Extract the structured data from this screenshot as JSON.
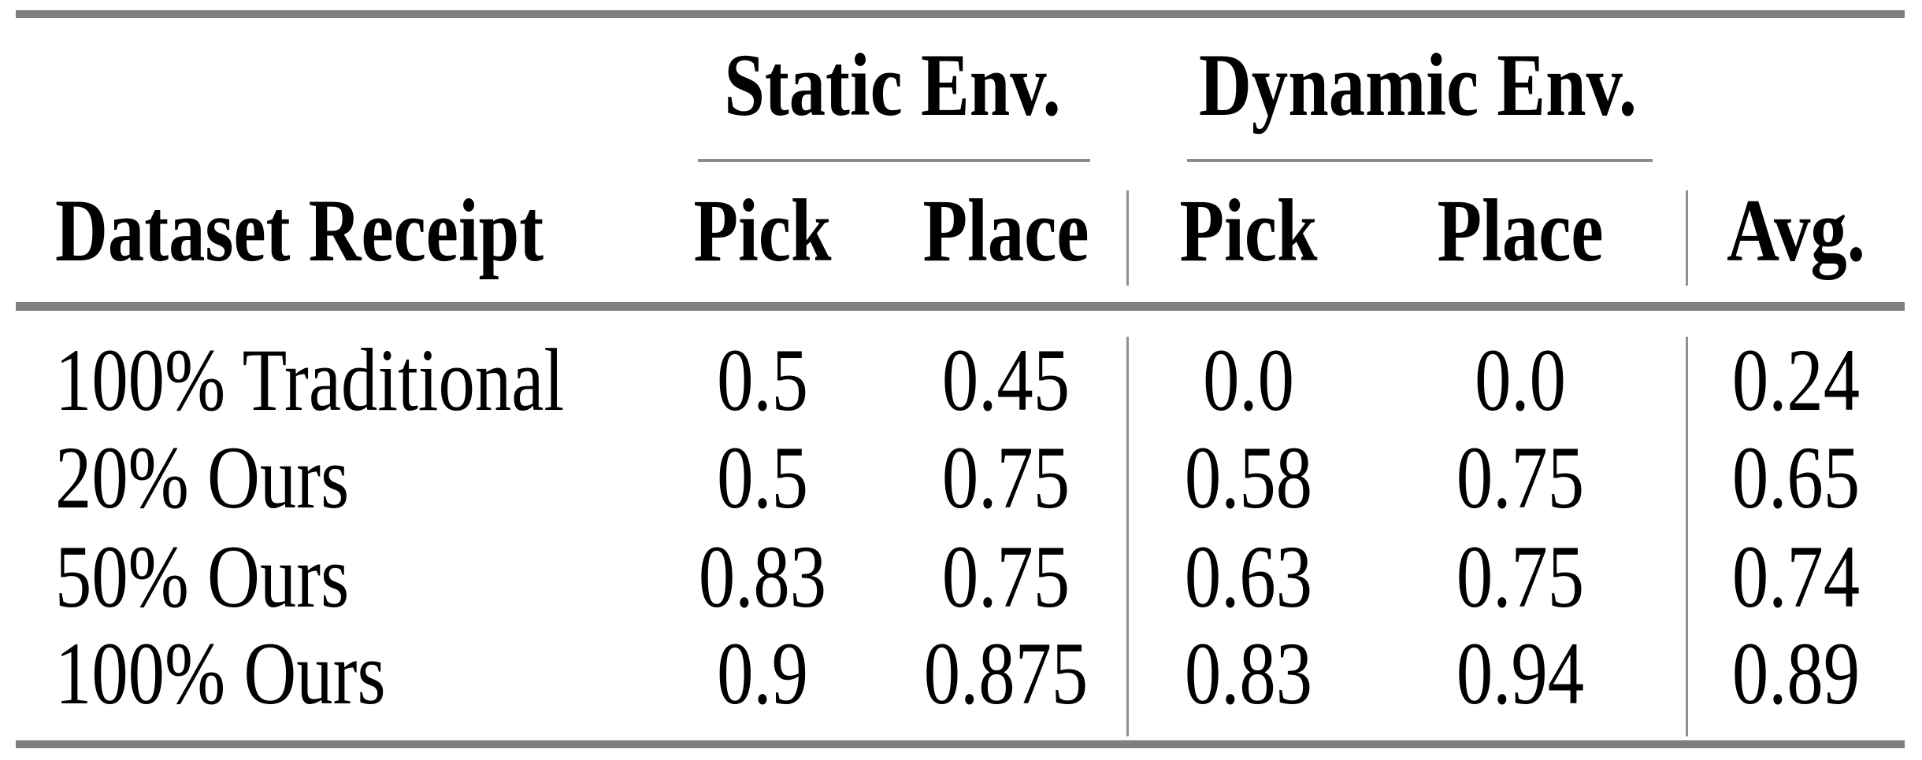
{
  "page": {
    "background": "#ffffff"
  },
  "colors": {
    "text": "#000000",
    "thick_rule": "#7f7f7f",
    "thin_rule": "#8c8c8c",
    "column_separator": "#909090"
  },
  "table": {
    "group_headers": {
      "static": "Static Env.",
      "dynamic": "Dynamic Env."
    },
    "header_row": {
      "row_label": "Dataset Receipt",
      "static_pick": "Pick",
      "static_place": "Place",
      "dynamic_pick": "Pick",
      "dynamic_place": "Place",
      "avg": "Avg."
    },
    "rows": [
      {
        "label": "100% Traditional",
        "values": [
          "0.5",
          "0.45",
          "0.0",
          "0.0",
          "0.24"
        ]
      },
      {
        "label": "20% Ours",
        "values": [
          "0.5",
          "0.75",
          "0.58",
          "0.75",
          "0.65"
        ]
      },
      {
        "label": "50% Ours",
        "values": [
          "0.83",
          "0.75",
          "0.63",
          "0.75",
          "0.74"
        ]
      },
      {
        "label": "100% Ours",
        "values": [
          "0.9",
          "0.875",
          "0.83",
          "0.94",
          "0.89"
        ]
      }
    ]
  }
}
